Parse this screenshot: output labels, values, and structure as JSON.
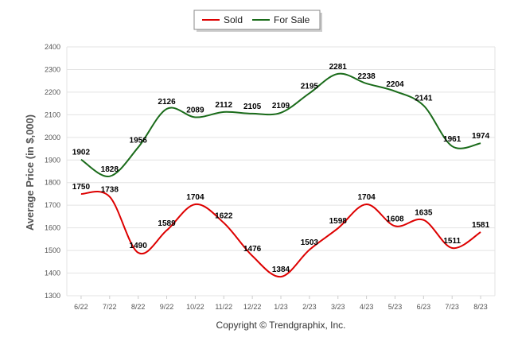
{
  "chart_data": {
    "type": "line",
    "ylabel": "Average Price (in $,000)",
    "footer": "Copyright © Trendgraphix, Inc.",
    "ylim": [
      1300,
      2400
    ],
    "yticks": [
      "1300",
      "1400",
      "1500",
      "1600",
      "1700",
      "1800",
      "1900",
      "2000",
      "2100",
      "2200",
      "2300",
      "2400"
    ],
    "categories": [
      "6/22",
      "7/22",
      "8/22",
      "9/22",
      "10/22",
      "11/22",
      "12/22",
      "1/23",
      "2/23",
      "3/23",
      "4/23",
      "5/23",
      "6/23",
      "7/23",
      "8/23"
    ],
    "grid": "horizontal",
    "legend_position": "top-center",
    "series": [
      {
        "name": "Sold",
        "color": "#dd0000",
        "values": [
          1750,
          1738,
          1490,
          1589,
          1704,
          1622,
          1476,
          1384,
          1503,
          1598,
          1704,
          1608,
          1635,
          1511,
          1581
        ],
        "labels": [
          "1750",
          "1738",
          "1490",
          "1589",
          "1704",
          "1622",
          "1476",
          "1384",
          "1503",
          "1598",
          "1704",
          "1608",
          "1635",
          "1511",
          "1581"
        ]
      },
      {
        "name": "For Sale",
        "color": "#1a6b1a",
        "values": [
          1902,
          1828,
          1956,
          2126,
          2089,
          2112,
          2105,
          2109,
          2195,
          2281,
          2238,
          2204,
          2141,
          1961,
          1974
        ],
        "labels": [
          "1902",
          "1828",
          "1956",
          "2126",
          "2089",
          "2112",
          "2105",
          "2109",
          "2195",
          "2281",
          "2238",
          "2204",
          "2141",
          "1961",
          "1974"
        ]
      }
    ]
  }
}
